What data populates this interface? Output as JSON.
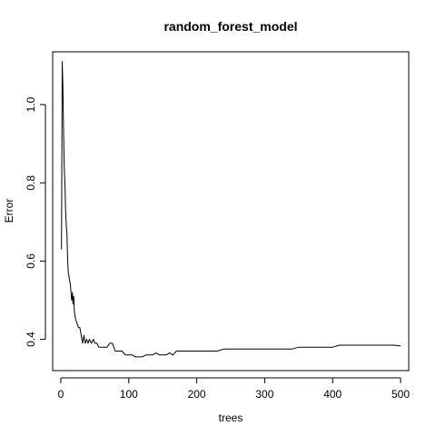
{
  "chart_data": {
    "type": "line",
    "title": "random_forest_model",
    "xlabel": "trees",
    "ylabel": "Error",
    "xlim": [
      -12,
      512
    ],
    "ylim": [
      0.32,
      1.135
    ],
    "xticks": [
      0,
      100,
      200,
      300,
      400,
      500
    ],
    "yticks": [
      0.4,
      0.6,
      0.8,
      1.0
    ],
    "ytick_labels": [
      "0.4",
      "0.6",
      "0.8",
      "1.0"
    ],
    "grid": false,
    "legend": "none",
    "series": [
      {
        "x": [
          1,
          2,
          3,
          4,
          5,
          6,
          7,
          8,
          9,
          10,
          11,
          12,
          13,
          14,
          15,
          16,
          17,
          18,
          19,
          20,
          22,
          24,
          26,
          28,
          30,
          32,
          34,
          36,
          38,
          40,
          42,
          45,
          48,
          50,
          53,
          56,
          60,
          64,
          68,
          72,
          76,
          80,
          85,
          90,
          95,
          100,
          105,
          110,
          115,
          120,
          125,
          130,
          135,
          140,
          145,
          150,
          155,
          160,
          165,
          170,
          175,
          180,
          190,
          200,
          210,
          220,
          230,
          240,
          250,
          260,
          270,
          280,
          290,
          300,
          310,
          320,
          330,
          340,
          350,
          360,
          370,
          380,
          390,
          400,
          410,
          420,
          430,
          440,
          450,
          460,
          470,
          480,
          490,
          500
        ],
        "y": [
          0.63,
          1.11,
          1.05,
          0.93,
          0.84,
          0.8,
          0.73,
          0.69,
          0.67,
          0.6,
          0.57,
          0.56,
          0.55,
          0.54,
          0.52,
          0.5,
          0.52,
          0.49,
          0.51,
          0.47,
          0.45,
          0.44,
          0.43,
          0.43,
          0.41,
          0.39,
          0.41,
          0.39,
          0.4,
          0.39,
          0.4,
          0.39,
          0.4,
          0.39,
          0.39,
          0.38,
          0.38,
          0.38,
          0.38,
          0.39,
          0.39,
          0.37,
          0.37,
          0.37,
          0.36,
          0.36,
          0.36,
          0.355,
          0.355,
          0.355,
          0.36,
          0.36,
          0.36,
          0.365,
          0.36,
          0.36,
          0.36,
          0.365,
          0.36,
          0.37,
          0.37,
          0.37,
          0.37,
          0.37,
          0.37,
          0.37,
          0.37,
          0.375,
          0.375,
          0.375,
          0.375,
          0.375,
          0.375,
          0.375,
          0.375,
          0.375,
          0.375,
          0.375,
          0.38,
          0.38,
          0.38,
          0.38,
          0.38,
          0.38,
          0.385,
          0.385,
          0.385,
          0.385,
          0.385,
          0.385,
          0.385,
          0.385,
          0.385,
          0.383
        ]
      }
    ]
  }
}
